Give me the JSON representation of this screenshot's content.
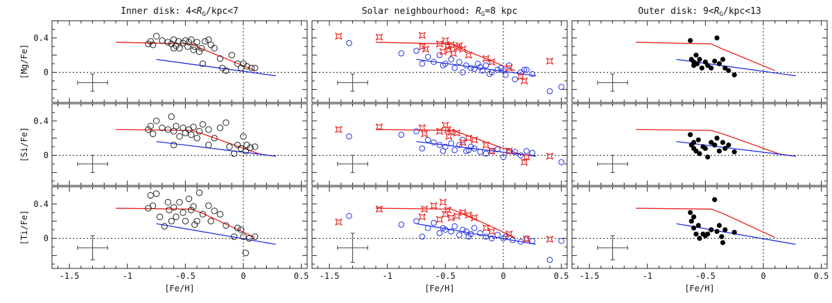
{
  "chart_data": {
    "type": "scatter",
    "panel_titles": [
      [
        "Inner disk: 4<",
        "R",
        "G",
        "/kpc<7"
      ],
      [
        "Solar neighbourhood: ",
        "R",
        "G",
        "=8 kpc"
      ],
      [
        "Outer disk: 9<",
        "R",
        "G",
        "/kpc<13"
      ]
    ],
    "xlabel": "[Fe/H]",
    "ylabels": [
      "[Mg/Fe]",
      "[Si/Fe]",
      "[Ti/Fe]"
    ],
    "xlim": [
      -1.65,
      0.55
    ],
    "ylim": [
      -0.35,
      0.6
    ],
    "xticks": [
      -1.5,
      -1,
      -0.5,
      0,
      0.5
    ],
    "xtick_labels": [
      "-1.5",
      "-1",
      "-0.5",
      "0",
      "0.5"
    ],
    "yticks": [
      0,
      0.4
    ],
    "ytick_labels": [
      "0",
      "0.4"
    ],
    "colors": {
      "thick_disk_model": "#e8201c",
      "thin_disk_model": "#1f2de0",
      "thick_stars": "#e8201c",
      "thin_stars": "#1f2de0",
      "inner_stars": "#222222",
      "outer_stars": "#000000",
      "errorbar": "#555555"
    },
    "grid": false,
    "models": [
      {
        "red": [
          [
            -1.1,
            0.35
          ],
          [
            -0.45,
            0.33
          ],
          [
            -0.35,
            0.27
          ],
          [
            0.1,
            0.02
          ]
        ],
        "blue": [
          [
            -0.75,
            0.15
          ],
          [
            0.28,
            -0.04
          ]
        ]
      },
      {
        "red": [
          [
            -1.1,
            0.3
          ],
          [
            -0.45,
            0.29
          ],
          [
            -0.35,
            0.25
          ],
          [
            0.15,
            0.01
          ],
          [
            0.28,
            -0.01
          ]
        ],
        "blue": [
          [
            -0.75,
            0.16
          ],
          [
            0.28,
            -0.01
          ]
        ]
      },
      {
        "red": [
          [
            -1.1,
            0.35
          ],
          [
            -0.45,
            0.34
          ],
          [
            -0.35,
            0.29
          ],
          [
            0.1,
            0.01
          ]
        ],
        "blue": [
          [
            -0.75,
            0.17
          ],
          [
            0.28,
            -0.07
          ]
        ]
      }
    ],
    "errorbars": [
      [
        [
          -1.3,
          -0.12,
          0.13,
          0.1
        ],
        [
          -1.3,
          -0.12,
          0.13,
          0.1
        ],
        [
          -1.3,
          -0.12,
          0.13,
          0.1
        ]
      ],
      [
        [
          -1.3,
          -0.1,
          0.13,
          0.1
        ],
        [
          -1.3,
          -0.1,
          0.13,
          0.1
        ],
        [
          -1.3,
          -0.1,
          0.13,
          0.1
        ]
      ],
      [
        [
          -1.3,
          -0.11,
          0.13,
          0.14
        ],
        [
          -1.3,
          -0.11,
          0.13,
          0.17
        ],
        [
          -1.3,
          -0.11,
          0.13,
          0.14
        ]
      ]
    ],
    "inner_disk": {
      "Mg": [
        [
          -0.82,
          0.33
        ],
        [
          -0.8,
          0.36
        ],
        [
          -0.78,
          0.32
        ],
        [
          -0.75,
          0.42
        ],
        [
          -0.7,
          0.37
        ],
        [
          -0.65,
          0.35
        ],
        [
          -0.62,
          0.33
        ],
        [
          -0.6,
          0.38
        ],
        [
          -0.58,
          0.31
        ],
        [
          -0.56,
          0.36
        ],
        [
          -0.55,
          0.28
        ],
        [
          -0.52,
          0.34
        ],
        [
          -0.5,
          0.37
        ],
        [
          -0.48,
          0.3
        ],
        [
          -0.47,
          0.35
        ],
        [
          -0.45,
          0.38
        ],
        [
          -0.43,
          0.26
        ],
        [
          -0.42,
          0.3
        ],
        [
          -0.4,
          0.35
        ],
        [
          -0.38,
          0.24
        ],
        [
          -0.36,
          0.28
        ],
        [
          -0.33,
          0.36
        ],
        [
          -0.3,
          0.38
        ],
        [
          -0.28,
          0.32
        ],
        [
          -0.25,
          0.28
        ],
        [
          -0.2,
          0.16
        ],
        [
          -0.18,
          0.05
        ],
        [
          -0.15,
          0.02
        ],
        [
          -0.1,
          0.2
        ],
        [
          -0.05,
          0.1
        ],
        [
          -0.02,
          0.05
        ],
        [
          0.0,
          0.1
        ],
        [
          0.03,
          0.07
        ],
        [
          0.07,
          0.05
        ],
        [
          0.1,
          0.05
        ],
        [
          -0.35,
          0.1
        ],
        [
          -0.6,
          0.28
        ]
      ],
      "Si": [
        [
          -0.82,
          0.3
        ],
        [
          -0.8,
          0.34
        ],
        [
          -0.78,
          0.25
        ],
        [
          -0.75,
          0.4
        ],
        [
          -0.7,
          0.32
        ],
        [
          -0.65,
          0.3
        ],
        [
          -0.62,
          0.45
        ],
        [
          -0.6,
          0.28
        ],
        [
          -0.58,
          0.34
        ],
        [
          -0.55,
          0.22
        ],
        [
          -0.52,
          0.32
        ],
        [
          -0.5,
          0.26
        ],
        [
          -0.47,
          0.3
        ],
        [
          -0.45,
          0.24
        ],
        [
          -0.43,
          0.33
        ],
        [
          -0.4,
          0.2
        ],
        [
          -0.38,
          0.28
        ],
        [
          -0.35,
          0.36
        ],
        [
          -0.3,
          0.3
        ],
        [
          -0.25,
          0.2
        ],
        [
          -0.2,
          0.32
        ],
        [
          -0.15,
          0.38
        ],
        [
          -0.12,
          0.1
        ],
        [
          -0.08,
          0.02
        ],
        [
          -0.05,
          0.12
        ],
        [
          -0.02,
          0.08
        ],
        [
          0.0,
          0.22
        ],
        [
          0.03,
          0.12
        ],
        [
          0.06,
          0.09
        ],
        [
          0.1,
          0.1
        ],
        [
          -0.6,
          0.12
        ],
        [
          -0.3,
          0.12
        ],
        [
          0.02,
          0.05
        ]
      ],
      "Ti": [
        [
          -0.82,
          0.35
        ],
        [
          -0.8,
          0.5
        ],
        [
          -0.78,
          0.38
        ],
        [
          -0.75,
          0.52
        ],
        [
          -0.72,
          0.25
        ],
        [
          -0.68,
          0.14
        ],
        [
          -0.64,
          0.33
        ],
        [
          -0.62,
          0.2
        ],
        [
          -0.6,
          0.36
        ],
        [
          -0.58,
          0.25
        ],
        [
          -0.55,
          0.42
        ],
        [
          -0.52,
          0.3
        ],
        [
          -0.5,
          0.2
        ],
        [
          -0.47,
          0.46
        ],
        [
          -0.45,
          0.33
        ],
        [
          -0.43,
          0.37
        ],
        [
          -0.4,
          0.2
        ],
        [
          -0.38,
          0.53
        ],
        [
          -0.35,
          0.28
        ],
        [
          -0.3,
          0.38
        ],
        [
          -0.28,
          0.2
        ],
        [
          -0.25,
          0.32
        ],
        [
          -0.2,
          0.28
        ],
        [
          -0.15,
          0.15
        ],
        [
          -0.08,
          0.02
        ],
        [
          -0.05,
          0.12
        ],
        [
          -0.02,
          0.1
        ],
        [
          0.0,
          0.02
        ],
        [
          0.02,
          -0.17
        ],
        [
          0.05,
          0.0
        ],
        [
          0.1,
          0.02
        ],
        [
          -0.65,
          0.42
        ],
        [
          -0.42,
          0.16
        ]
      ]
    },
    "solar_thick": {
      "Mg": [
        [
          -1.42,
          0.42
        ],
        [
          -1.07,
          0.41
        ],
        [
          -0.7,
          0.43
        ],
        [
          -0.7,
          0.3
        ],
        [
          -0.67,
          0.27
        ],
        [
          -0.55,
          0.33
        ],
        [
          -0.52,
          0.24
        ],
        [
          -0.5,
          0.37
        ],
        [
          -0.48,
          0.3
        ],
        [
          -0.47,
          0.26
        ],
        [
          -0.45,
          0.32
        ],
        [
          -0.43,
          0.22
        ],
        [
          -0.4,
          0.29
        ],
        [
          -0.38,
          0.31
        ],
        [
          -0.35,
          0.27
        ],
        [
          -0.3,
          0.2
        ],
        [
          -0.15,
          0.16
        ],
        [
          -0.1,
          0.12
        ],
        [
          0.05,
          0.05
        ],
        [
          0.15,
          -0.05
        ],
        [
          0.18,
          -0.1
        ],
        [
          0.4,
          0.13
        ]
      ],
      "Si": [
        [
          -1.42,
          0.3
        ],
        [
          -1.07,
          0.33
        ],
        [
          -0.7,
          0.32
        ],
        [
          -0.68,
          0.25
        ],
        [
          -0.55,
          0.28
        ],
        [
          -0.5,
          0.35
        ],
        [
          -0.48,
          0.3
        ],
        [
          -0.47,
          0.22
        ],
        [
          -0.45,
          0.27
        ],
        [
          -0.4,
          0.26
        ],
        [
          -0.35,
          0.15
        ],
        [
          -0.3,
          0.2
        ],
        [
          -0.25,
          0.18
        ],
        [
          -0.15,
          0.12
        ],
        [
          -0.1,
          0.05
        ],
        [
          0.05,
          0.05
        ],
        [
          0.18,
          -0.08
        ],
        [
          0.2,
          -0.02
        ],
        [
          0.4,
          -0.01
        ]
      ],
      "Ti": [
        [
          -1.42,
          0.19
        ],
        [
          -1.07,
          0.34
        ],
        [
          -0.7,
          0.25
        ],
        [
          -0.68,
          0.34
        ],
        [
          -0.6,
          0.38
        ],
        [
          -0.55,
          0.22
        ],
        [
          -0.52,
          0.42
        ],
        [
          -0.5,
          0.28
        ],
        [
          -0.48,
          0.33
        ],
        [
          -0.45,
          0.24
        ],
        [
          -0.4,
          0.26
        ],
        [
          -0.35,
          0.3
        ],
        [
          -0.3,
          0.27
        ],
        [
          -0.25,
          0.24
        ],
        [
          -0.15,
          0.12
        ],
        [
          -0.1,
          0.08
        ],
        [
          0.05,
          0.05
        ],
        [
          0.2,
          -0.01
        ],
        [
          0.4,
          -0.01
        ]
      ]
    },
    "solar_thin": {
      "Mg": [
        [
          -1.33,
          0.34
        ],
        [
          -0.88,
          0.22
        ],
        [
          -0.75,
          0.25
        ],
        [
          -0.65,
          0.18
        ],
        [
          -0.6,
          0.12
        ],
        [
          -0.55,
          0.2
        ],
        [
          -0.52,
          0.08
        ],
        [
          -0.5,
          0.1
        ],
        [
          -0.45,
          0.15
        ],
        [
          -0.42,
          0.05
        ],
        [
          -0.38,
          0.12
        ],
        [
          -0.35,
          0.0
        ],
        [
          -0.32,
          0.08
        ],
        [
          -0.28,
          0.05
        ],
        [
          -0.25,
          0.04
        ],
        [
          -0.22,
          0.1
        ],
        [
          -0.18,
          0.02
        ],
        [
          -0.15,
          0.08
        ],
        [
          -0.12,
          -0.02
        ],
        [
          -0.1,
          0.0
        ],
        [
          -0.05,
          0.03
        ],
        [
          -0.02,
          0.05
        ],
        [
          0.0,
          0.02
        ],
        [
          0.02,
          -0.03
        ],
        [
          0.05,
          0.08
        ],
        [
          0.1,
          -0.08
        ],
        [
          0.15,
          0.0
        ],
        [
          0.18,
          0.03
        ],
        [
          0.2,
          0.03
        ],
        [
          0.25,
          -0.02
        ],
        [
          0.4,
          -0.22
        ],
        [
          0.5,
          -0.17
        ],
        [
          -0.7,
          0.1
        ],
        [
          -0.2,
          0.06
        ]
      ],
      "Si": [
        [
          -1.33,
          0.22
        ],
        [
          -0.88,
          0.24
        ],
        [
          -0.75,
          0.28
        ],
        [
          -0.65,
          0.18
        ],
        [
          -0.6,
          0.15
        ],
        [
          -0.55,
          0.12
        ],
        [
          -0.52,
          0.05
        ],
        [
          -0.5,
          0.1
        ],
        [
          -0.45,
          0.14
        ],
        [
          -0.42,
          0.06
        ],
        [
          -0.38,
          0.12
        ],
        [
          -0.35,
          0.18
        ],
        [
          -0.32,
          0.05
        ],
        [
          -0.28,
          0.1
        ],
        [
          -0.25,
          0.08
        ],
        [
          -0.2,
          0.04
        ],
        [
          -0.15,
          0.02
        ],
        [
          -0.1,
          0.05
        ],
        [
          -0.05,
          0.07
        ],
        [
          0.0,
          -0.02
        ],
        [
          0.05,
          0.05
        ],
        [
          0.1,
          0.04
        ],
        [
          0.15,
          0.0
        ],
        [
          0.2,
          0.05
        ],
        [
          0.25,
          0.03
        ],
        [
          0.5,
          -0.08
        ],
        [
          -0.7,
          0.08
        ],
        [
          -0.3,
          0.06
        ]
      ],
      "Ti": [
        [
          -1.33,
          0.26
        ],
        [
          -0.88,
          0.16
        ],
        [
          -0.75,
          0.2
        ],
        [
          -0.65,
          0.12
        ],
        [
          -0.6,
          0.18
        ],
        [
          -0.55,
          0.06
        ],
        [
          -0.52,
          0.12
        ],
        [
          -0.5,
          0.1
        ],
        [
          -0.45,
          0.08
        ],
        [
          -0.42,
          0.14
        ],
        [
          -0.38,
          0.04
        ],
        [
          -0.35,
          0.1
        ],
        [
          -0.32,
          0.08
        ],
        [
          -0.28,
          0.05
        ],
        [
          -0.25,
          0.12
        ],
        [
          -0.2,
          0.06
        ],
        [
          -0.15,
          0.02
        ],
        [
          -0.1,
          0.0
        ],
        [
          -0.05,
          0.04
        ],
        [
          0.0,
          0.0
        ],
        [
          0.02,
          0.02
        ],
        [
          0.08,
          -0.02
        ],
        [
          0.15,
          -0.04
        ],
        [
          0.2,
          0.0
        ],
        [
          0.25,
          -0.03
        ],
        [
          0.4,
          -0.25
        ],
        [
          0.5,
          -0.03
        ],
        [
          -0.7,
          0.02
        ],
        [
          -0.3,
          0.02
        ]
      ]
    },
    "outer_disk": {
      "Mg": [
        [
          -0.63,
          0.37
        ],
        [
          -0.62,
          0.15
        ],
        [
          -0.6,
          0.12
        ],
        [
          -0.58,
          0.2
        ],
        [
          -0.57,
          0.1
        ],
        [
          -0.55,
          0.15
        ],
        [
          -0.53,
          0.05
        ],
        [
          -0.5,
          0.12
        ],
        [
          -0.48,
          0.08
        ],
        [
          -0.45,
          0.05
        ],
        [
          -0.42,
          0.13
        ],
        [
          -0.4,
          0.4
        ],
        [
          -0.38,
          0.1
        ],
        [
          -0.35,
          0.15
        ],
        [
          -0.33,
          0.05
        ],
        [
          -0.3,
          0.02
        ],
        [
          -0.25,
          -0.03
        ],
        [
          -0.6,
          0.08
        ]
      ],
      "Si": [
        [
          -0.63,
          0.24
        ],
        [
          -0.62,
          0.12
        ],
        [
          -0.6,
          0.15
        ],
        [
          -0.58,
          0.05
        ],
        [
          -0.56,
          0.18
        ],
        [
          -0.55,
          0.02
        ],
        [
          -0.52,
          0.1
        ],
        [
          -0.5,
          0.08
        ],
        [
          -0.48,
          -0.02
        ],
        [
          -0.45,
          0.15
        ],
        [
          -0.42,
          0.12
        ],
        [
          -0.4,
          0.2
        ],
        [
          -0.38,
          0.05
        ],
        [
          -0.35,
          0.15
        ],
        [
          -0.33,
          0.08
        ],
        [
          -0.3,
          0.12
        ],
        [
          -0.25,
          0.04
        ],
        [
          -0.6,
          0.08
        ]
      ],
      "Ti": [
        [
          -0.63,
          0.3
        ],
        [
          -0.62,
          0.2
        ],
        [
          -0.6,
          0.12
        ],
        [
          -0.58,
          0.05
        ],
        [
          -0.56,
          0.15
        ],
        [
          -0.55,
          0.0
        ],
        [
          -0.52,
          0.05
        ],
        [
          -0.5,
          0.03
        ],
        [
          -0.48,
          0.05
        ],
        [
          -0.45,
          0.1
        ],
        [
          -0.42,
          0.45
        ],
        [
          -0.4,
          0.08
        ],
        [
          -0.38,
          0.15
        ],
        [
          -0.36,
          0.02
        ],
        [
          -0.35,
          -0.05
        ],
        [
          -0.33,
          0.1
        ],
        [
          -0.25,
          0.07
        ],
        [
          -0.6,
          0.25
        ]
      ]
    }
  }
}
